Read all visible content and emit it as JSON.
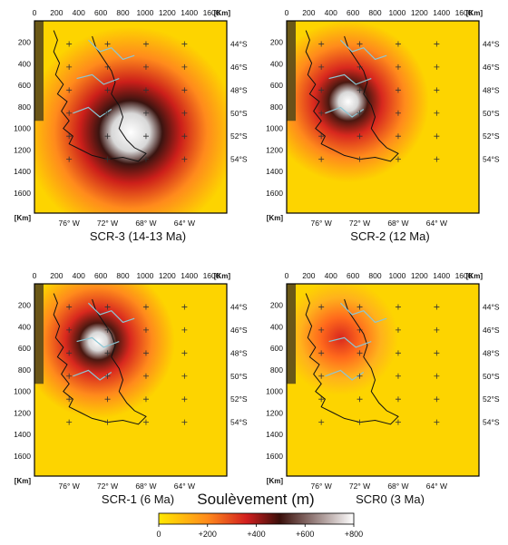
{
  "panels": [
    {
      "caption": "SCR-3 (14-13 Ma)",
      "uplift_center": {
        "x_km": 750,
        "y_km": 1120
      },
      "peak_uplift_m": 800,
      "plateau_extent_km": [
        [
          450,
          1400
        ],
        [
          1280,
          900
        ]
      ]
    },
    {
      "caption": "SCR-2 (12 Ma)",
      "uplift_center": {
        "x_km": 420,
        "y_km": 880
      },
      "peak_uplift_m": 700,
      "plateau_extent_km": [
        [
          250,
          1000
        ],
        [
          1000,
          650
        ]
      ]
    },
    {
      "caption": "SCR-1 (6 Ma)",
      "uplift_center": {
        "x_km": 380,
        "y_km": 580
      },
      "peak_uplift_m": 760,
      "plateau_extent_km": [
        [
          280,
          900
        ],
        [
          800,
          500
        ]
      ]
    },
    {
      "caption": "SCR0 (3 Ma)",
      "uplift_center": {
        "x_km": 300,
        "y_km": 500
      },
      "peak_uplift_m": 320,
      "plateau_extent_km": [
        [
          200,
          700
        ],
        [
          800,
          400
        ]
      ]
    }
  ],
  "axes": {
    "x_ticks": [
      "0",
      "200",
      "400",
      "600",
      "800",
      "1000",
      "1200",
      "1400",
      "1600"
    ],
    "y_ticks": [
      "200",
      "400",
      "600",
      "800",
      "1000",
      "1200",
      "1400",
      "1600"
    ],
    "unit_label": "[Km]",
    "lon_labels": [
      "76° W",
      "72° W",
      "68° W",
      "64° W"
    ],
    "lat_labels": [
      "44°S",
      "46°S",
      "48°S",
      "50°S",
      "52°S",
      "54°S"
    ]
  },
  "legend": {
    "title": "Soulèvement (m)",
    "ticks": [
      "0",
      "+200",
      "+400",
      "+600",
      "+800"
    ],
    "range_m": [
      0,
      800
    ],
    "colors": [
      "#ffe800",
      "#ff8a1c",
      "#d21f1f",
      "#3a0f0a",
      "#ffffff"
    ]
  },
  "colors": {
    "background_field": "#fdd400",
    "coastline": "#111111",
    "rivers": "#8cc7d4",
    "slab_strip": "#5a4a1a",
    "border": "#000000"
  }
}
